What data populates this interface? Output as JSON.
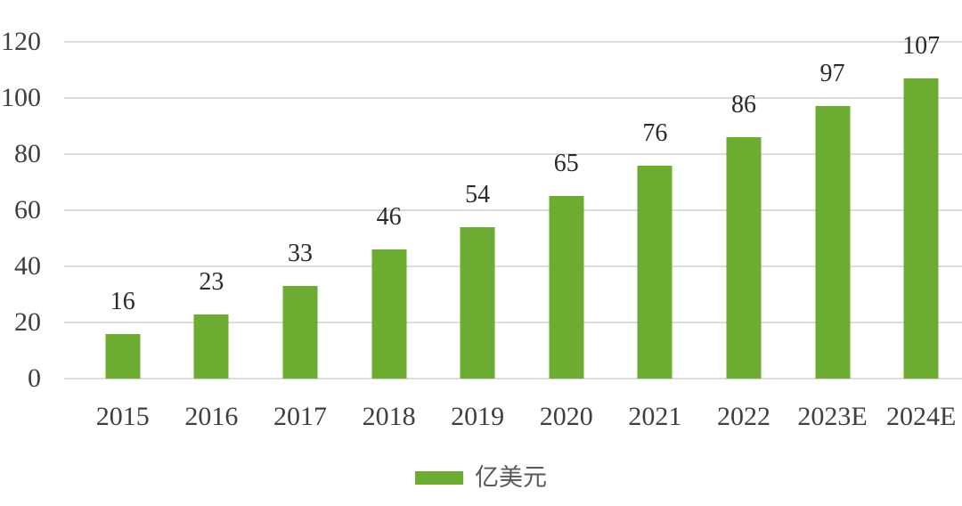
{
  "chart_data": {
    "type": "bar",
    "title": "",
    "categories": [
      "2015",
      "2016",
      "2017",
      "2018",
      "2019",
      "2020",
      "2021",
      "2022",
      "2023E",
      "2024E"
    ],
    "values": [
      16,
      23,
      33,
      46,
      54,
      65,
      76,
      86,
      97,
      107
    ],
    "series": [
      {
        "name": "亿美元",
        "values": [
          16,
          23,
          33,
          46,
          54,
          65,
          76,
          86,
          97,
          107
        ]
      }
    ],
    "xlabel": "",
    "ylabel": "",
    "unit_label": "亿美元",
    "legend": [
      "亿美元"
    ],
    "legend_position": "bottom",
    "ylim": [
      0,
      120
    ],
    "y_ticks": [
      0,
      20,
      40,
      60,
      80,
      100,
      120
    ],
    "grid": "horizontal",
    "bar_color": "#6cac30",
    "gridline_color": "#dcdcdc",
    "tick_label_color": "#3f3f3f",
    "value_label_color": "#2a2a2a",
    "legend_text_color": "#595959"
  }
}
